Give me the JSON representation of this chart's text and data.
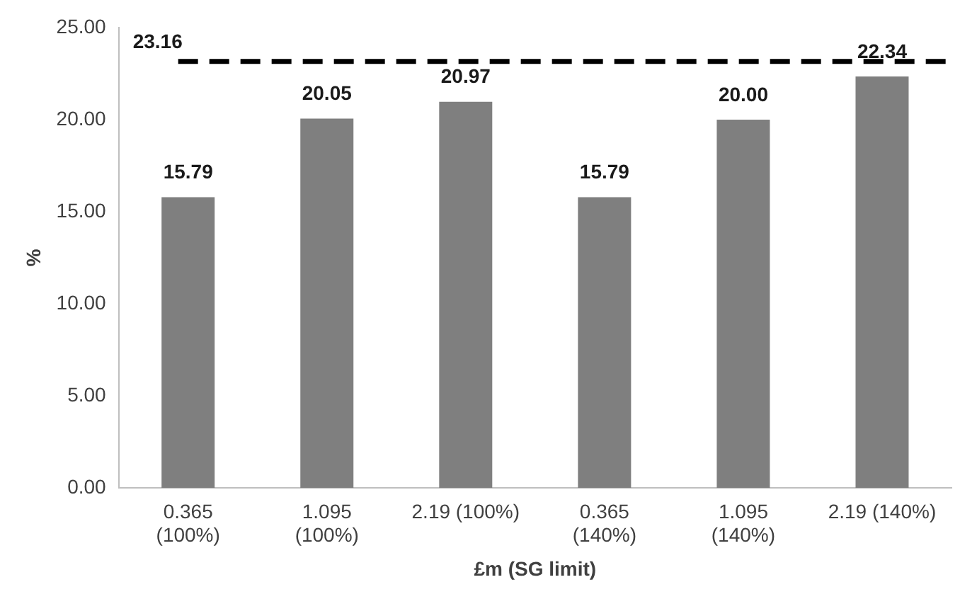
{
  "chart_data": {
    "type": "bar",
    "xlabel": "£m (SG limit)",
    "ylabel": "%",
    "categories": [
      "0.365 (100%)",
      "1.095 (100%)",
      "2.19 (100%)",
      "0.365 (140%)",
      "1.095 (140%)",
      "2.19 (140%)"
    ],
    "values": [
      15.79,
      20.05,
      20.97,
      15.79,
      20.0,
      22.34
    ],
    "value_labels": [
      "15.79",
      "20.05",
      "20.97",
      "15.79",
      "20.00",
      "22.34"
    ],
    "color": "#7f7f7f",
    "ylim": [
      0,
      25
    ],
    "yticks": [
      {
        "value": 0,
        "label": "0.00"
      },
      {
        "value": 5,
        "label": "5.00"
      },
      {
        "value": 10,
        "label": "10.00"
      },
      {
        "value": 15,
        "label": "15.00"
      },
      {
        "value": 20,
        "label": "20.00"
      },
      {
        "value": 25,
        "label": "25.00"
      }
    ],
    "ref_lines": [
      {
        "axis": "y",
        "value": 23.16,
        "label": "23.16",
        "color": "#000000",
        "line_style": "dashed"
      }
    ],
    "grid": false,
    "legend": false
  }
}
